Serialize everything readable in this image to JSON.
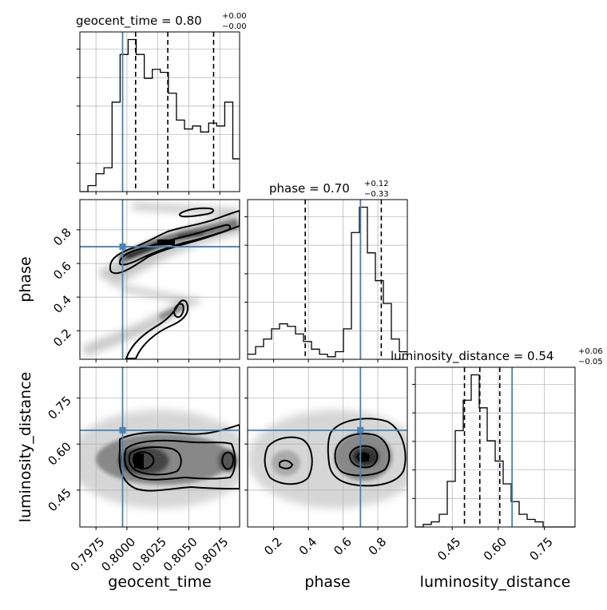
{
  "chart_data": [
    {
      "type": "histogram",
      "panel": "geocent_time",
      "title_label": "geocent_time = 0.80",
      "title_sup": "+0.00",
      "title_sub": "−0.00",
      "xlim": [
        0.7962,
        0.8091
      ],
      "xticks": [
        "0.7975",
        "0.8000",
        "0.8025",
        "0.8050",
        "0.8075"
      ],
      "xtick_values": [
        0.7975,
        0.8,
        0.8025,
        0.805,
        0.8075
      ],
      "bin_edges": [
        0.7962,
        0.79685,
        0.7975,
        0.79815,
        0.7988,
        0.79945,
        0.8001,
        0.80075,
        0.8014,
        0.80205,
        0.8027,
        0.80335,
        0.804,
        0.80465,
        0.8053,
        0.80595,
        0.8066,
        0.80725,
        0.8079,
        0.80855,
        0.8091
      ],
      "counts": [
        0,
        2,
        6,
        8,
        30,
        46,
        51,
        46,
        38,
        41,
        40,
        33,
        24,
        21,
        22,
        20,
        23,
        22,
        30,
        11
      ],
      "quantiles": [
        0.8007,
        0.8033,
        0.807
      ],
      "truth": 0.79965
    },
    {
      "type": "histogram",
      "panel": "phase",
      "title_label": "phase = 0.70",
      "title_sup": "+0.12",
      "title_sub": "−0.33",
      "xlim": [
        0.05,
        0.97
      ],
      "xticks": [
        "0.2",
        "0.4",
        "0.6",
        "0.8"
      ],
      "xtick_values": [
        0.2,
        0.4,
        0.6,
        0.8
      ],
      "bin_edges": [
        0.05,
        0.096,
        0.142,
        0.188,
        0.234,
        0.28,
        0.326,
        0.372,
        0.418,
        0.464,
        0.51,
        0.556,
        0.602,
        0.648,
        0.694,
        0.74,
        0.786,
        0.832,
        0.878,
        0.924,
        0.97
      ],
      "counts": [
        2,
        5,
        8,
        12,
        14,
        13,
        10,
        7,
        4,
        2,
        1,
        3,
        12,
        50,
        60,
        42,
        31,
        22,
        8,
        3
      ],
      "quantiles": [
        0.382,
        0.7,
        0.82
      ],
      "truth": 0.7
    },
    {
      "type": "histogram",
      "panel": "luminosity_distance",
      "title_label": "luminosity_distance = 0.54",
      "title_sup": "+0.06",
      "title_sub": "−0.05",
      "xlim": [
        0.33,
        0.85
      ],
      "xticks": [
        "0.45",
        "0.60",
        "0.75"
      ],
      "xtick_values": [
        0.45,
        0.6,
        0.75
      ],
      "bin_edges": [
        0.33,
        0.356,
        0.382,
        0.408,
        0.434,
        0.46,
        0.486,
        0.512,
        0.538,
        0.564,
        0.59,
        0.616,
        0.642,
        0.668,
        0.694,
        0.72,
        0.746,
        0.772,
        0.798,
        0.824,
        0.85
      ],
      "counts": [
        0,
        1,
        2,
        5,
        18,
        38,
        50,
        60,
        47,
        34,
        26,
        17,
        10,
        5,
        3,
        2,
        0,
        0,
        0,
        0
      ],
      "quantiles": [
        0.49,
        0.54,
        0.605
      ],
      "truth": 0.645
    },
    {
      "type": "contour",
      "panel": "phase_vs_geocent_time",
      "x": "geocent_time",
      "y": "phase",
      "xlim": [
        0.7962,
        0.8091
      ],
      "ylim": [
        0.03,
        0.98
      ],
      "yticks": [
        "0.2",
        "0.4",
        "0.6",
        "0.8"
      ],
      "ytick_values": [
        0.2,
        0.4,
        0.6,
        0.8
      ],
      "truth": [
        0.79965,
        0.7
      ]
    },
    {
      "type": "contour",
      "panel": "luminosity_distance_vs_geocent_time",
      "x": "geocent_time",
      "y": "luminosity_distance",
      "xlim": [
        0.7962,
        0.8091
      ],
      "ylim": [
        0.33,
        0.85
      ],
      "yticks": [
        "0.45",
        "0.60",
        "0.75"
      ],
      "ytick_values": [
        0.45,
        0.6,
        0.75
      ],
      "truth": [
        0.79965,
        0.645
      ]
    },
    {
      "type": "contour",
      "panel": "luminosity_distance_vs_phase",
      "x": "phase",
      "y": "luminosity_distance",
      "xlim": [
        0.05,
        0.97
      ],
      "ylim": [
        0.33,
        0.85
      ],
      "truth": [
        0.7,
        0.645
      ]
    }
  ],
  "axis_labels": {
    "x_geocent_time": "geocent_time",
    "x_phase": "phase",
    "x_luminosity_distance": "luminosity_distance",
    "y_phase": "phase",
    "y_luminosity_distance": "luminosity_distance"
  },
  "colors": {
    "truth": "#4682b4",
    "hist": "#000000",
    "grid": "#b0b0b0"
  }
}
